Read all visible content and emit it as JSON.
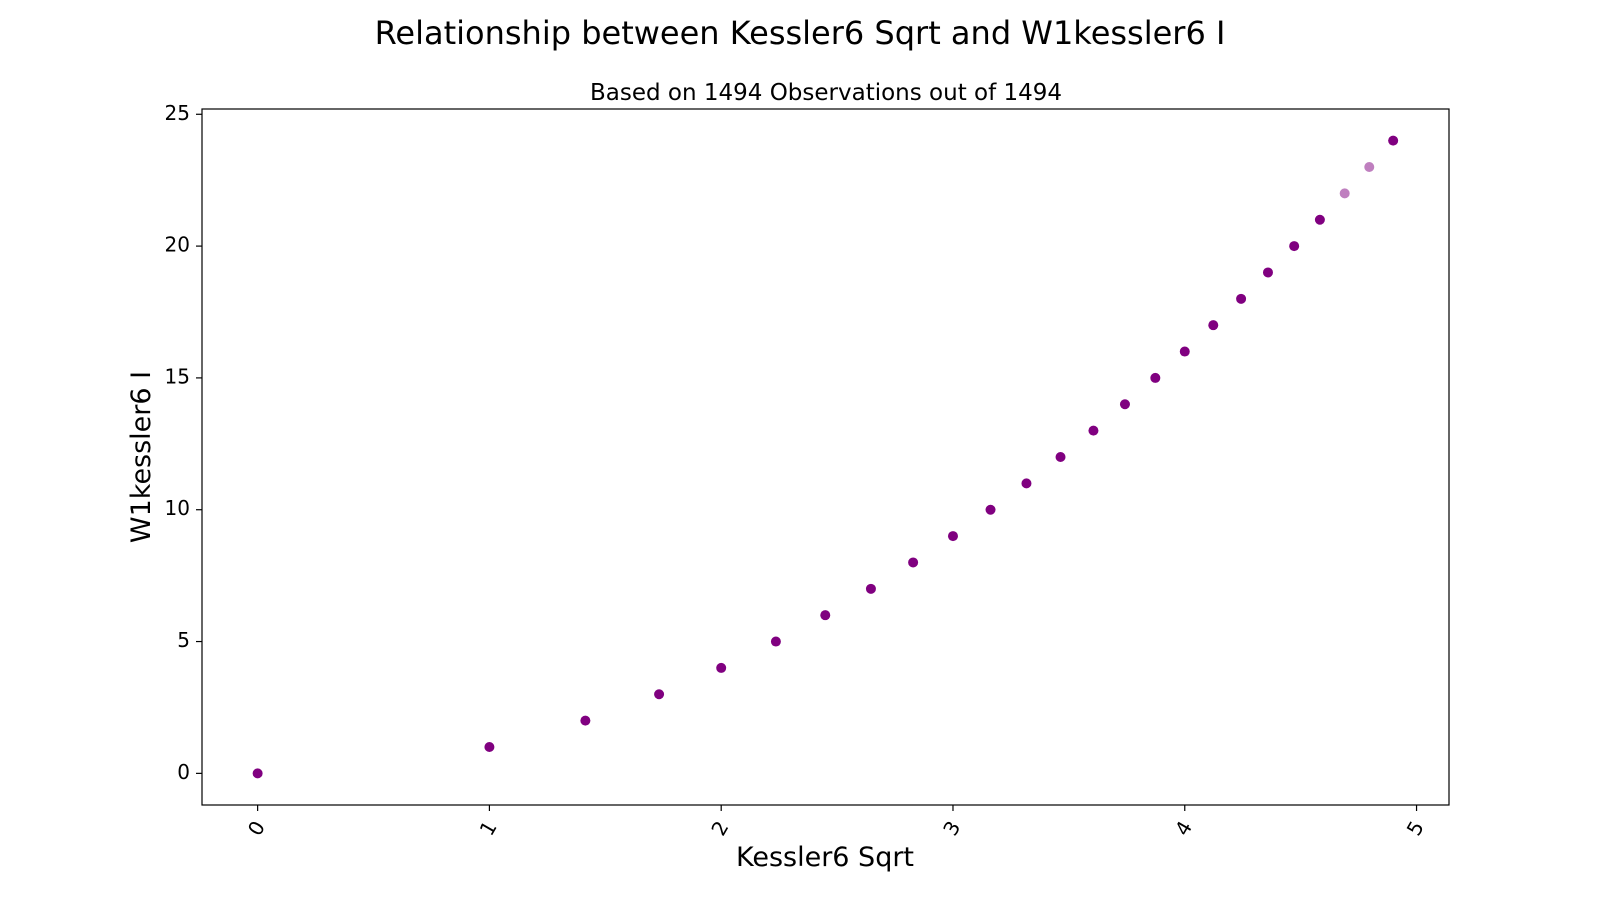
{
  "chart_data": {
    "type": "scatter",
    "title": "Relationship between Kessler6 Sqrt and W1kessler6 I",
    "subtitle": "Based on 1494 Observations out of 1494",
    "xlabel": "Kessler6 Sqrt",
    "ylabel": "W1kessler6 I",
    "xlim": [
      -0.24,
      5.14
    ],
    "ylim": [
      -1.2,
      25.2
    ],
    "xticks": [
      "0",
      "1",
      "2",
      "3",
      "4",
      "5"
    ],
    "yticks": [
      "0",
      "5",
      "10",
      "15",
      "20",
      "25"
    ],
    "xtick_values": [
      0,
      1,
      2,
      3,
      4,
      5
    ],
    "ytick_values": [
      0,
      5,
      10,
      15,
      20,
      25
    ],
    "xtick_rotation": -60,
    "grid": false,
    "marker_color": "#800080",
    "points": [
      {
        "x": 0,
        "y": 0,
        "opacity": 1
      },
      {
        "x": 1,
        "y": 1,
        "opacity": 1
      },
      {
        "x": 1.414,
        "y": 2,
        "opacity": 1
      },
      {
        "x": 1.732,
        "y": 3,
        "opacity": 1
      },
      {
        "x": 2,
        "y": 4,
        "opacity": 1
      },
      {
        "x": 2.236,
        "y": 5,
        "opacity": 1
      },
      {
        "x": 2.449,
        "y": 6,
        "opacity": 1
      },
      {
        "x": 2.646,
        "y": 7,
        "opacity": 1
      },
      {
        "x": 2.828,
        "y": 8,
        "opacity": 1
      },
      {
        "x": 3,
        "y": 9,
        "opacity": 1
      },
      {
        "x": 3.162,
        "y": 10,
        "opacity": 1
      },
      {
        "x": 3.317,
        "y": 11,
        "opacity": 1
      },
      {
        "x": 3.464,
        "y": 12,
        "opacity": 1
      },
      {
        "x": 3.606,
        "y": 13,
        "opacity": 1
      },
      {
        "x": 3.742,
        "y": 14,
        "opacity": 1
      },
      {
        "x": 3.873,
        "y": 15,
        "opacity": 1
      },
      {
        "x": 4,
        "y": 16,
        "opacity": 1
      },
      {
        "x": 4.123,
        "y": 17,
        "opacity": 1
      },
      {
        "x": 4.243,
        "y": 18,
        "opacity": 1
      },
      {
        "x": 4.359,
        "y": 19,
        "opacity": 1
      },
      {
        "x": 4.472,
        "y": 20,
        "opacity": 1
      },
      {
        "x": 4.583,
        "y": 21,
        "opacity": 1
      },
      {
        "x": 4.69,
        "y": 22,
        "opacity": 0.5
      },
      {
        "x": 4.796,
        "y": 23,
        "opacity": 0.5
      },
      {
        "x": 4.899,
        "y": 24,
        "opacity": 1
      }
    ]
  }
}
